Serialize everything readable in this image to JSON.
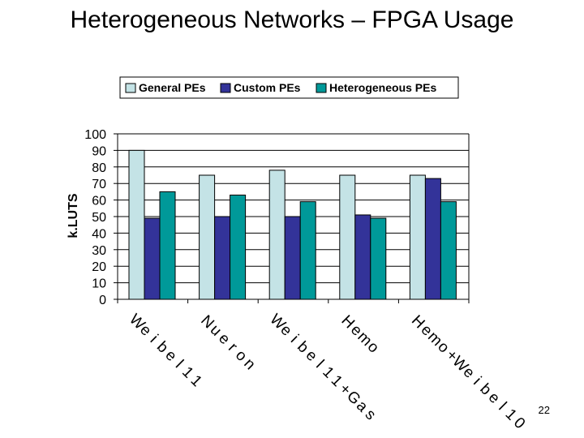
{
  "slide": {
    "title": "Heterogeneous Networks – FPGA Usage",
    "number": "22"
  },
  "chart_data": {
    "type": "bar",
    "title": "",
    "xlabel": "",
    "ylabel": "k.LUTS",
    "ylim": [
      0,
      100
    ],
    "yticks": [
      0,
      10,
      20,
      30,
      40,
      50,
      60,
      70,
      80,
      90,
      100
    ],
    "grid": true,
    "legend_position": "top",
    "categories": [
      "Weibel11",
      "Nueron",
      "Weibel11+Gas",
      "Hemo",
      "Hemo+Weibel10"
    ],
    "series": [
      {
        "name": "General PEs",
        "color": "#c4e3e6",
        "values": [
          90,
          75,
          78,
          75,
          75
        ]
      },
      {
        "name": "Custom PEs",
        "color": "#333399",
        "values": [
          49,
          50,
          50,
          51,
          73
        ]
      },
      {
        "name": "Heterogeneous PEs",
        "color": "#009999",
        "values": [
          65,
          63,
          59,
          49,
          59
        ]
      }
    ]
  }
}
